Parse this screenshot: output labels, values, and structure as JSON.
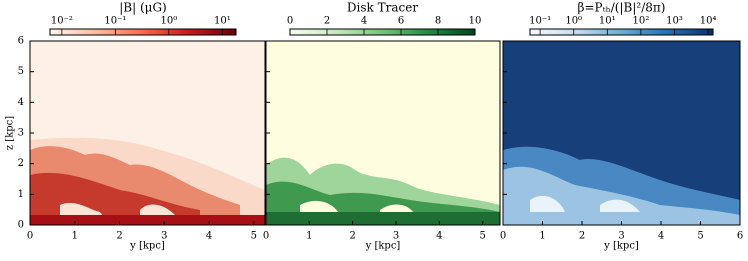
{
  "chart_data": [
    {
      "type": "heatmap",
      "title": "|B| (μG)",
      "xlabel": "y [kpc]",
      "ylabel": "z [kpc]",
      "xlim": [
        0,
        5.25
      ],
      "ylim": [
        0,
        6
      ],
      "xticks": [
        0,
        1,
        2,
        3,
        4,
        5
      ],
      "yticks": [
        0,
        1,
        2,
        3,
        4,
        5,
        6
      ],
      "colorbar": {
        "scale": "log",
        "clim": [
          0.006,
          18
        ],
        "colors": [
          "#fff5f0",
          "#fcbba1",
          "#fb6a4a",
          "#cb181d",
          "#67000d"
        ],
        "ticks": [
          {
            "value": 0.01,
            "label": "10⁻²"
          },
          {
            "value": 0.1,
            "label": "10⁻¹"
          },
          {
            "value": 1,
            "label": "10⁰"
          },
          {
            "value": 10,
            "label": "10¹"
          }
        ]
      }
    },
    {
      "type": "heatmap",
      "title": "Disk Tracer",
      "xlabel": "y [kpc]",
      "xlim": [
        0,
        5.4
      ],
      "ylim": [
        0,
        6
      ],
      "xticks": [
        0,
        1,
        2,
        3,
        4,
        5
      ],
      "yticks": [
        0,
        1,
        2,
        3,
        4,
        5,
        6
      ],
      "colorbar": {
        "scale": "linear",
        "clim": [
          0,
          10
        ],
        "colors": [
          "#f7fcf5",
          "#c7e9c0",
          "#74c476",
          "#238b45",
          "#00441b"
        ],
        "ticks": [
          0,
          2,
          4,
          6,
          8,
          10
        ]
      }
    },
    {
      "type": "heatmap",
      "title": "β=Pₜₕ/(|B|²/8π)",
      "xlabel": "y [kpc]",
      "xlim": [
        0,
        6
      ],
      "ylim": [
        0,
        6
      ],
      "xticks": [
        0,
        1,
        2,
        3,
        4,
        5,
        6
      ],
      "yticks": [
        0,
        1,
        2,
        3,
        4,
        5,
        6
      ],
      "colorbar": {
        "scale": "log",
        "clim": [
          0.05,
          14000
        ],
        "colors": [
          "#f7fbff",
          "#c6dbef",
          "#6baed6",
          "#2171b5",
          "#08306b"
        ],
        "ticks": [
          {
            "value": 0.1,
            "label": "10⁻¹"
          },
          {
            "value": 1,
            "label": "10⁰"
          },
          {
            "value": 10,
            "label": "10¹"
          },
          {
            "value": 100,
            "label": "10²"
          },
          {
            "value": 1000,
            "label": "10³"
          },
          {
            "value": 10000,
            "label": "10⁴"
          }
        ]
      }
    }
  ]
}
